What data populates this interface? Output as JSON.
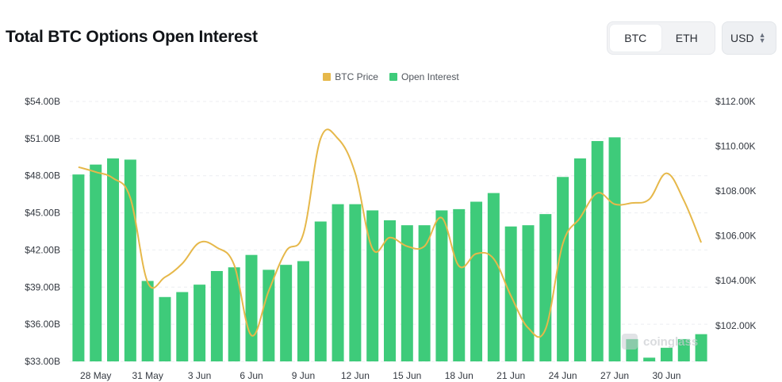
{
  "header": {
    "title": "Total BTC Options Open Interest"
  },
  "asset_toggle": {
    "options": [
      "BTC",
      "ETH"
    ],
    "selected": "BTC"
  },
  "currency_select": {
    "value": "USD"
  },
  "watermark": "coinglass",
  "colors": {
    "bar": "#3ecb7a",
    "line": "#e6b84a",
    "grid": "#eceef1"
  },
  "chart_data": {
    "type": "bar",
    "title": "Total BTC Options Open Interest",
    "legend_position": "top-center",
    "grid": true,
    "categories": [
      "27 May",
      "28 May",
      "29 May",
      "30 May",
      "31 May",
      "1 Jun",
      "2 Jun",
      "3 Jun",
      "4 Jun",
      "5 Jun",
      "6 Jun",
      "7 Jun",
      "8 Jun",
      "9 Jun",
      "10 Jun",
      "11 Jun",
      "12 Jun",
      "13 Jun",
      "14 Jun",
      "15 Jun",
      "16 Jun",
      "17 Jun",
      "18 Jun",
      "19 Jun",
      "20 Jun",
      "21 Jun",
      "22 Jun",
      "23 Jun",
      "24 Jun",
      "25 Jun",
      "26 Jun",
      "27 Jun",
      "28 Jun",
      "29 Jun",
      "30 Jun",
      "1 Jul",
      "2 Jul"
    ],
    "x_tick_labels": [
      "",
      "28 May",
      "",
      "",
      "31 May",
      "",
      "",
      "3 Jun",
      "",
      "",
      "6 Jun",
      "",
      "",
      "9 Jun",
      "",
      "",
      "12 Jun",
      "",
      "",
      "15 Jun",
      "",
      "",
      "18 Jun",
      "",
      "",
      "21 Jun",
      "",
      "",
      "24 Jun",
      "",
      "",
      "27 Jun",
      "",
      "",
      "30 Jun",
      "",
      ""
    ],
    "y_left": {
      "ticks": [
        "$33.00B",
        "$36.00B",
        "$39.00B",
        "$42.00B",
        "$45.00B",
        "$48.00B",
        "$51.00B",
        "$54.00B"
      ],
      "range": [
        33,
        54
      ]
    },
    "y_right": {
      "ticks": [
        "$102.00K",
        "$104.00K",
        "$106.00K",
        "$108.00K",
        "$110.00K",
        "$112.00K"
      ],
      "range": [
        100.4,
        112
      ]
    },
    "series": [
      {
        "name": "Open Interest",
        "kind": "bar",
        "axis": "left",
        "values": [
          48.1,
          48.9,
          49.4,
          49.3,
          39.5,
          38.2,
          38.6,
          39.2,
          40.3,
          40.6,
          41.6,
          40.4,
          40.8,
          41.1,
          44.3,
          45.7,
          45.7,
          45.2,
          44.4,
          44.0,
          44.0,
          45.2,
          45.3,
          45.9,
          46.6,
          43.9,
          44.0,
          44.9,
          47.9,
          49.4,
          50.8,
          51.1,
          34.8,
          33.3,
          34.1,
          34.8,
          35.2
        ]
      },
      {
        "name": "BTC Price",
        "kind": "line",
        "axis": "left",
        "values": [
          48.7,
          48.3,
          47.8,
          46.2,
          39.4,
          39.8,
          40.9,
          42.6,
          42.2,
          40.8,
          35.1,
          38.7,
          41.9,
          43.3,
          51.0,
          51.0,
          48.2,
          42.1,
          43.0,
          42.3,
          42.3,
          44.6,
          40.7,
          41.7,
          41.3,
          38.3,
          35.7,
          35.6,
          42.5,
          44.6,
          46.6,
          45.7,
          45.8,
          46.1,
          48.2,
          46.0,
          42.6
        ]
      }
    ]
  }
}
